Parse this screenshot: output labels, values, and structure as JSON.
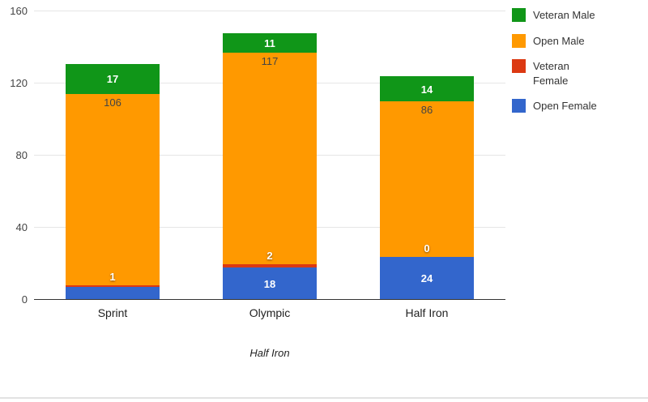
{
  "chart_data": {
    "type": "bar",
    "stacked": true,
    "title": "",
    "xlabel": "Half Iron",
    "ylabel": "",
    "ylim": [
      0,
      160
    ],
    "y_ticks": [
      0,
      40,
      80,
      120,
      160
    ],
    "grid": true,
    "legend_position": "right",
    "categories": [
      "Sprint",
      "Olympic",
      "Half Iron"
    ],
    "series": [
      {
        "name": "Open Female",
        "color": "#3366cc",
        "values": [
          7,
          18,
          24
        ],
        "labels": [
          "",
          "18",
          "24"
        ],
        "label_style": "center",
        "label_color": "#ffffff"
      },
      {
        "name": "Veteran Female",
        "color": "#dc3912",
        "values": [
          1,
          2,
          0
        ],
        "labels": [
          "1",
          "2",
          "0"
        ],
        "label_style": "above",
        "label_color": "#ffffff"
      },
      {
        "name": "Open Male",
        "color": "#ff9900",
        "values": [
          106,
          117,
          86
        ],
        "labels": [
          "106",
          "117",
          "86"
        ],
        "label_style": "inside-top",
        "label_color": "#444444"
      },
      {
        "name": "Veteran Male",
        "color": "#109618",
        "values": [
          17,
          11,
          14
        ],
        "labels": [
          "17",
          "11",
          "14"
        ],
        "label_style": "center",
        "label_color": "#ffffff"
      }
    ],
    "legend": [
      {
        "label": "Veteran Male",
        "color": "#109618"
      },
      {
        "label": "Open Male",
        "color": "#ff9900"
      },
      {
        "label": "Veteran Female",
        "color": "#dc3912"
      },
      {
        "label": "Open Female",
        "color": "#3366cc"
      }
    ]
  }
}
